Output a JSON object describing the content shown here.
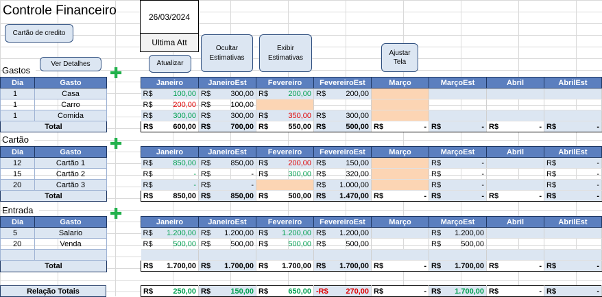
{
  "header": {
    "title": "Controle Financeiro",
    "date": "26/03/2024",
    "update_label": "Ultima Att"
  },
  "buttons": {
    "credit_card": "Cartão de credito",
    "details": "Ver Detalhes",
    "refresh": "Atualizar",
    "hide_estimates": "Ocultar Estimativas",
    "show_estimates": "Exibir Estimativas",
    "fit_screen": "Ajustar Tela"
  },
  "columns": {
    "dia": "Dia",
    "gasto": "Gasto",
    "total": "Total",
    "months": [
      "Janeiro",
      "JaneiroEst",
      "Fevereiro",
      "FevereiroEst",
      "Março",
      "MarçoEst",
      "Abril",
      "AbrilEst"
    ]
  },
  "currency": "R$",
  "sections": [
    {
      "name": "Gastos",
      "rows": [
        {
          "dia": "1",
          "gasto": "Casa",
          "cells": [
            [
              "100,00",
              "pos"
            ],
            [
              "300,00",
              "blk"
            ],
            [
              "200,00",
              "pos"
            ],
            [
              "200,00",
              "blk"
            ],
            [
              "",
              "peach"
            ],
            [
              "",
              ""
            ],
            [
              "",
              ""
            ],
            [
              "",
              ""
            ]
          ]
        },
        {
          "dia": "1",
          "gasto": "Carro",
          "cells": [
            [
              "200,00",
              "neg"
            ],
            [
              "100,00",
              "blk"
            ],
            [
              "",
              "peach"
            ],
            [
              "",
              ""
            ],
            [
              "",
              "peach"
            ],
            [
              "",
              ""
            ],
            [
              "",
              ""
            ],
            [
              "",
              ""
            ]
          ]
        },
        {
          "dia": "1",
          "gasto": "Comida",
          "cells": [
            [
              "300,00",
              "pos"
            ],
            [
              "300,00",
              "blk"
            ],
            [
              "350,00",
              "neg"
            ],
            [
              "300,00",
              "blk"
            ],
            [
              "",
              "peach"
            ],
            [
              "",
              ""
            ],
            [
              "",
              ""
            ],
            [
              "",
              ""
            ]
          ]
        }
      ],
      "total_label": "Total",
      "totals": [
        "600,00",
        "700,00",
        "550,00",
        "500,00",
        "-",
        "-",
        "-",
        "-"
      ]
    },
    {
      "name": "Cartão",
      "rows": [
        {
          "dia": "12",
          "gasto": "Cartão 1",
          "cells": [
            [
              "850,00",
              "pos"
            ],
            [
              "850,00",
              "blk"
            ],
            [
              "200,00",
              "neg"
            ],
            [
              "150,00",
              "blk"
            ],
            [
              "",
              "peach"
            ],
            [
              "-",
              "blk"
            ],
            [
              "",
              ""
            ],
            [
              "-",
              "blk"
            ]
          ]
        },
        {
          "dia": "15",
          "gasto": "Cartão 2",
          "cells": [
            [
              "-",
              "pos"
            ],
            [
              "-",
              "blk"
            ],
            [
              "300,00",
              "pos"
            ],
            [
              "320,00",
              "blk"
            ],
            [
              "",
              "peach"
            ],
            [
              "-",
              "blk"
            ],
            [
              "",
              ""
            ],
            [
              "-",
              "blk"
            ]
          ]
        },
        {
          "dia": "20",
          "gasto": "Cartão 3",
          "cells": [
            [
              "-",
              "pos"
            ],
            [
              "-",
              "blk"
            ],
            [
              "",
              "peach"
            ],
            [
              "1.000,00",
              "blk"
            ],
            [
              "",
              "peach"
            ],
            [
              "-",
              "blk"
            ],
            [
              "",
              ""
            ],
            [
              "-",
              "blk"
            ]
          ]
        }
      ],
      "total_label": "Total",
      "totals": [
        "850,00",
        "850,00",
        "500,00",
        "1.470,00",
        "-",
        "-",
        "-",
        "-"
      ]
    },
    {
      "name": "Entrada",
      "rows": [
        {
          "dia": "5",
          "gasto": "Salario",
          "cells": [
            [
              "1.200,00",
              "pos"
            ],
            [
              "1.200,00",
              "blk"
            ],
            [
              "1.200,00",
              "pos"
            ],
            [
              "1.200,00",
              "blk"
            ],
            [
              "",
              ""
            ],
            [
              "1.200,00",
              "blk"
            ],
            [
              "",
              ""
            ],
            [
              "",
              ""
            ]
          ]
        },
        {
          "dia": "20",
          "gasto": "Venda",
          "cells": [
            [
              "500,00",
              "pos"
            ],
            [
              "500,00",
              "blk"
            ],
            [
              "500,00",
              "pos"
            ],
            [
              "500,00",
              "blk"
            ],
            [
              "",
              ""
            ],
            [
              "500,00",
              "blk"
            ],
            [
              "",
              ""
            ],
            [
              "",
              ""
            ]
          ]
        }
      ],
      "total_label": "Total",
      "totals": [
        "1.700,00",
        "1.700,00",
        "1.700,00",
        "1.700,00",
        "-",
        "1.700,00",
        "-",
        "-"
      ]
    }
  ],
  "relation": {
    "label": "Relação Totais",
    "values": [
      [
        "250,00",
        "pos"
      ],
      [
        "150,00",
        "pos"
      ],
      [
        "650,00",
        "pos"
      ],
      [
        "270,00",
        "negR"
      ],
      [
        "-",
        "blk"
      ],
      [
        "1.700,00",
        "pos"
      ],
      [
        "-",
        "blk"
      ],
      [
        "-",
        "blk"
      ]
    ]
  },
  "colors": {
    "header_blue": "#5b7fbf",
    "light_blue": "#dce6f2",
    "peach": "#fcd5b4",
    "positive": "#00a050",
    "negative": "#e00000",
    "plus_green": "#22b14c"
  }
}
